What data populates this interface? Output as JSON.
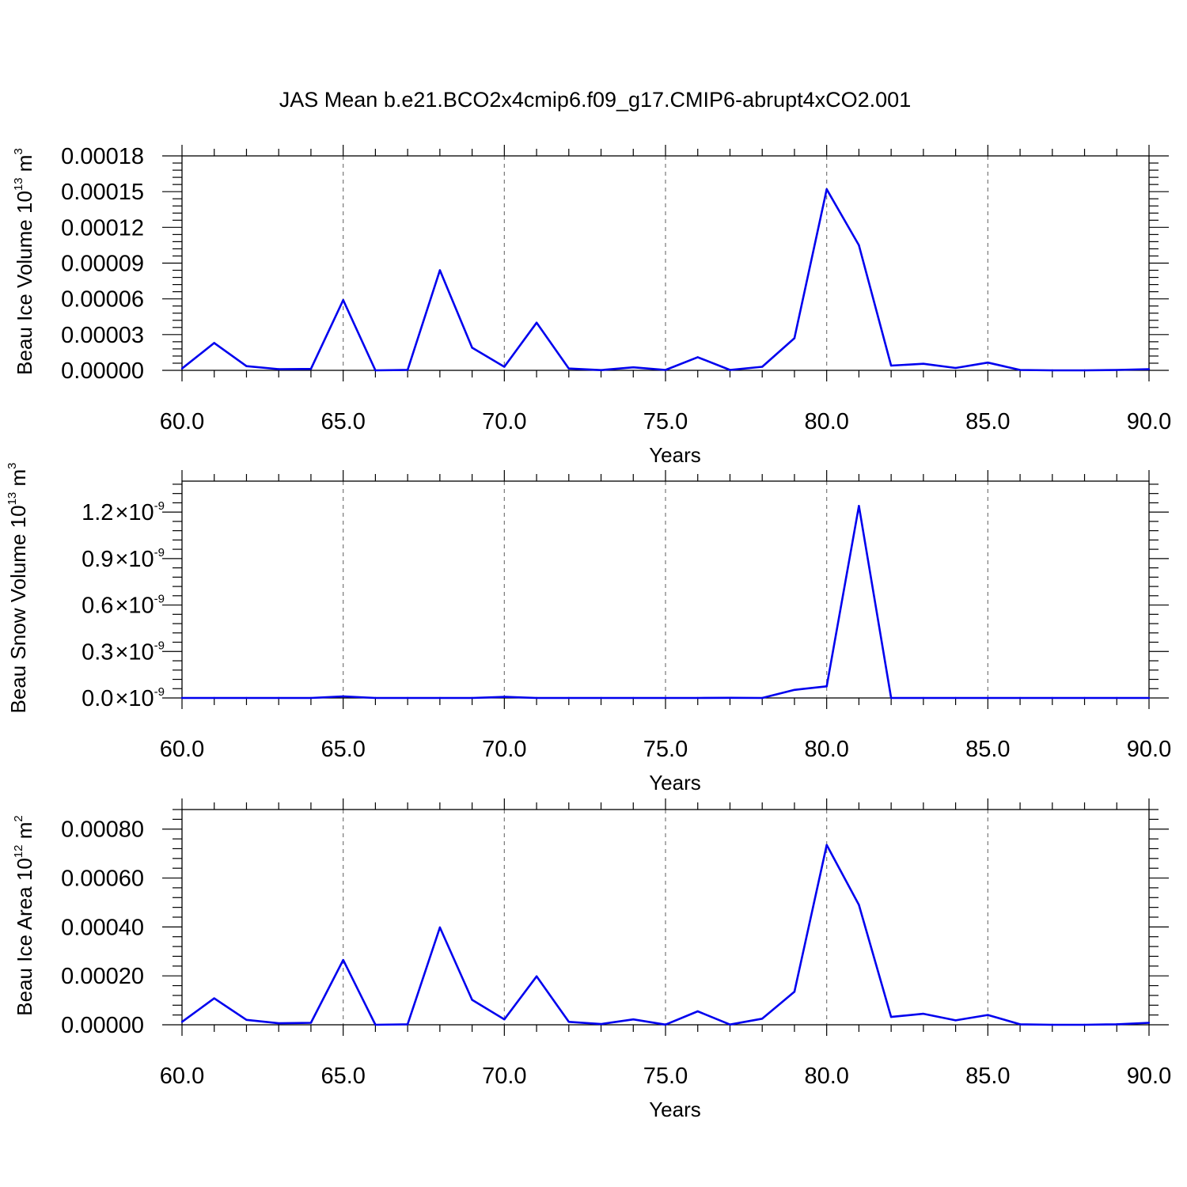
{
  "title": "JAS Mean b.e21.BCO2x4cmip6.f09_g17.CMIP6-abrupt4xCO2.001",
  "colors": {
    "line": "#0000ee",
    "grid": "#777777"
  },
  "chart_data": [
    {
      "type": "line",
      "xlabel": "Years",
      "ylabel_prefix": "Beau Ice Volume 10",
      "ylabel_exp": "13",
      "ylabel_suffix": " m",
      "ylabel_unit_exp": "3",
      "xlim": [
        60,
        90
      ],
      "ylim": [
        0,
        0.00018
      ],
      "xticks": [
        60,
        65,
        70,
        75,
        80,
        85,
        90
      ],
      "xtick_labels": [
        "60.0",
        "65.0",
        "70.0",
        "75.0",
        "80.0",
        "85.0",
        "90.0"
      ],
      "yticks": [
        0,
        3e-05,
        6e-05,
        9e-05,
        0.00012,
        0.00015,
        0.00018
      ],
      "ytick_labels": [
        "0.00000",
        "0.00003",
        "0.00006",
        "0.00009",
        "0.00012",
        "0.00015",
        "0.00018"
      ],
      "grid_x": [
        65,
        70,
        75,
        80,
        85
      ],
      "x": [
        60,
        61,
        62,
        63,
        64,
        65,
        66,
        67,
        68,
        69,
        70,
        71,
        72,
        73,
        74,
        75,
        76,
        77,
        78,
        79,
        80,
        81,
        82,
        83,
        84,
        85,
        86,
        87,
        88,
        89,
        90
      ],
      "y": [
        1.5e-06,
        2.3e-05,
        3.5e-06,
        1e-06,
        1.2e-06,
        5.9e-05,
        0.0,
        3e-07,
        8.4e-05,
        1.9e-05,
        3e-06,
        4e-05,
        1.5e-06,
        2e-07,
        2.5e-06,
        3e-07,
        1.1e-05,
        3e-07,
        3e-06,
        2.7e-05,
        0.000152,
        0.000105,
        4e-06,
        5.5e-06,
        2e-06,
        6.5e-06,
        3e-07,
        0.0,
        0.0,
        3e-07,
        1e-06
      ]
    },
    {
      "type": "line",
      "xlabel": "Years",
      "ylabel_prefix": "Beau Snow Volume 10",
      "ylabel_exp": "13",
      "ylabel_suffix": " m",
      "ylabel_unit_exp": "3",
      "xlim": [
        60,
        90
      ],
      "ylim": [
        0,
        1.4e-09
      ],
      "xticks": [
        60,
        65,
        70,
        75,
        80,
        85,
        90
      ],
      "xtick_labels": [
        "60.0",
        "65.0",
        "70.0",
        "75.0",
        "80.0",
        "85.0",
        "90.0"
      ],
      "yticks": [
        0,
        3e-10,
        6e-10,
        9e-10,
        1.2e-09
      ],
      "ytick_labels": [
        "0.0",
        "0.3",
        "0.6",
        "0.9",
        "1.2"
      ],
      "ytick_mult": "×10",
      "ytick_exp": "-9",
      "grid_x": [
        65,
        70,
        75,
        80,
        85
      ],
      "x": [
        60,
        61,
        62,
        63,
        64,
        65,
        66,
        67,
        68,
        69,
        70,
        71,
        72,
        73,
        74,
        75,
        76,
        77,
        78,
        79,
        80,
        81,
        82,
        83,
        84,
        85,
        86,
        87,
        88,
        89,
        90
      ],
      "y": [
        0,
        0,
        0,
        0,
        0,
        1e-11,
        0,
        0,
        0,
        0,
        7e-12,
        0,
        0,
        0,
        0,
        0,
        0,
        1e-12,
        0,
        5.2e-11,
        7.5e-11,
        1.24e-09,
        0,
        0,
        0,
        0,
        0,
        0,
        0,
        0,
        0
      ]
    },
    {
      "type": "line",
      "xlabel": "Years",
      "ylabel_prefix": "Beau Ice Area 10",
      "ylabel_exp": "12",
      "ylabel_suffix": " m",
      "ylabel_unit_exp": "2",
      "xlim": [
        60,
        90
      ],
      "ylim": [
        0,
        0.00088
      ],
      "xticks": [
        60,
        65,
        70,
        75,
        80,
        85,
        90
      ],
      "xtick_labels": [
        "60.0",
        "65.0",
        "70.0",
        "75.0",
        "80.0",
        "85.0",
        "90.0"
      ],
      "yticks": [
        0,
        0.0002,
        0.0004,
        0.0006,
        0.0008
      ],
      "ytick_labels": [
        "0.00000",
        "0.00020",
        "0.00040",
        "0.00060",
        "0.00080"
      ],
      "grid_x": [
        65,
        70,
        75,
        80,
        85
      ],
      "x": [
        60,
        61,
        62,
        63,
        64,
        65,
        66,
        67,
        68,
        69,
        70,
        71,
        72,
        73,
        74,
        75,
        76,
        77,
        78,
        79,
        80,
        81,
        82,
        83,
        84,
        85,
        86,
        87,
        88,
        89,
        90
      ],
      "y": [
        1.2e-05,
        0.000108,
        2e-05,
        6e-06,
        8e-06,
        0.000265,
        0.0,
        2e-06,
        0.000398,
        0.000102,
        2.2e-05,
        0.000198,
        1.2e-05,
        3e-06,
        2.2e-05,
        5e-07,
        5.5e-05,
        1e-06,
        2.5e-05,
        0.000135,
        0.000735,
        0.00049,
        3.2e-05,
        4.5e-05,
        1.8e-05,
        4e-05,
        2e-06,
        0.0,
        0.0,
        2e-06,
        8e-06
      ]
    }
  ]
}
